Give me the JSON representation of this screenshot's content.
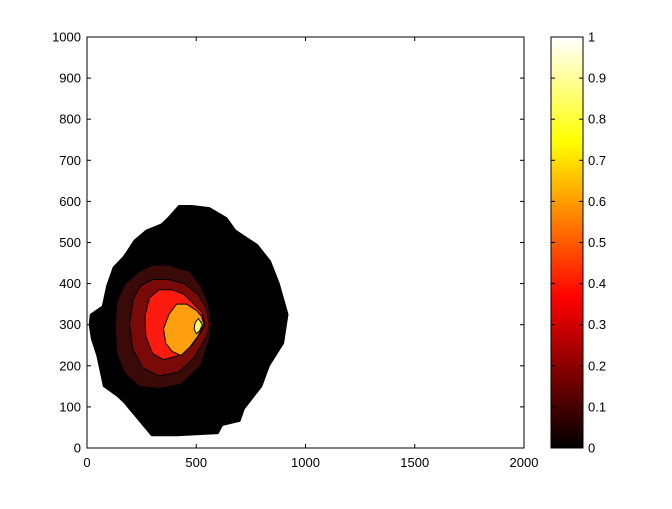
{
  "chart_data": {
    "type": "contour",
    "title": "",
    "xlabel": "",
    "ylabel": "",
    "xlim": [
      0,
      2000
    ],
    "ylim": [
      0,
      1000
    ],
    "x_ticks": [
      0,
      500,
      1000,
      1500,
      2000
    ],
    "y_ticks": [
      0,
      100,
      200,
      300,
      400,
      500,
      600,
      700,
      800,
      900,
      1000
    ],
    "colormap": "hot",
    "colorbar": {
      "range": [
        0,
        1
      ],
      "ticks": [
        0,
        0.1,
        0.2,
        0.3,
        0.4,
        0.5,
        0.6,
        0.7,
        0.8,
        0.9,
        1
      ],
      "tick_labels": [
        "0",
        "0.1",
        "0.2",
        "0.3",
        "0.4",
        "0.5",
        "0.6",
        "0.7",
        "0.8",
        "0.9",
        "1"
      ]
    },
    "grid": false,
    "levels": [
      {
        "value": 0.0,
        "color": "#000000",
        "polygon": [
          [
            480,
            590
          ],
          [
            420,
            590
          ],
          [
            370,
            560
          ],
          [
            340,
            545
          ],
          [
            270,
            530
          ],
          [
            215,
            505
          ],
          [
            185,
            480
          ],
          [
            165,
            465
          ],
          [
            120,
            440
          ],
          [
            90,
            395
          ],
          [
            70,
            345
          ],
          [
            15,
            325
          ],
          [
            10,
            300
          ],
          [
            20,
            265
          ],
          [
            45,
            225
          ],
          [
            75,
            150
          ],
          [
            140,
            125
          ],
          [
            170,
            110
          ],
          [
            295,
            30
          ],
          [
            410,
            30
          ],
          [
            600,
            35
          ],
          [
            620,
            55
          ],
          [
            700,
            65
          ],
          [
            720,
            95
          ],
          [
            800,
            150
          ],
          [
            835,
            200
          ],
          [
            900,
            255
          ],
          [
            920,
            325
          ],
          [
            880,
            400
          ],
          [
            840,
            455
          ],
          [
            780,
            495
          ],
          [
            680,
            530
          ],
          [
            640,
            560
          ],
          [
            560,
            585
          ]
        ]
      },
      {
        "value": 0.1,
        "color": "#3a0a08",
        "polygon": [
          [
            370,
            445
          ],
          [
            300,
            445
          ],
          [
            240,
            430
          ],
          [
            175,
            400
          ],
          [
            135,
            355
          ],
          [
            130,
            300
          ],
          [
            135,
            230
          ],
          [
            175,
            180
          ],
          [
            240,
            150
          ],
          [
            330,
            145
          ],
          [
            430,
            155
          ],
          [
            520,
            200
          ],
          [
            560,
            265
          ],
          [
            570,
            300
          ],
          [
            555,
            350
          ],
          [
            520,
            395
          ],
          [
            470,
            430
          ]
        ]
      },
      {
        "value": 0.2,
        "color": "#7a0a08",
        "polygon": [
          [
            370,
            410
          ],
          [
            300,
            410
          ],
          [
            245,
            395
          ],
          [
            210,
            360
          ],
          [
            195,
            300
          ],
          [
            210,
            240
          ],
          [
            255,
            195
          ],
          [
            330,
            175
          ],
          [
            420,
            185
          ],
          [
            490,
            220
          ],
          [
            545,
            270
          ],
          [
            560,
            300
          ],
          [
            545,
            340
          ],
          [
            505,
            375
          ],
          [
            445,
            400
          ]
        ]
      },
      {
        "value": 0.3,
        "color": "#ff1a10",
        "polygon": [
          [
            390,
            385
          ],
          [
            330,
            385
          ],
          [
            285,
            365
          ],
          [
            265,
            320
          ],
          [
            270,
            270
          ],
          [
            300,
            230
          ],
          [
            350,
            215
          ],
          [
            420,
            225
          ],
          [
            480,
            250
          ],
          [
            525,
            285
          ],
          [
            540,
            300
          ],
          [
            525,
            330
          ],
          [
            480,
            355
          ],
          [
            440,
            375
          ]
        ]
      },
      {
        "value": 0.5,
        "color": "#ff9f0d",
        "polygon": [
          [
            455,
            350
          ],
          [
            410,
            350
          ],
          [
            375,
            325
          ],
          [
            350,
            290
          ],
          [
            360,
            255
          ],
          [
            390,
            235
          ],
          [
            430,
            225
          ],
          [
            470,
            245
          ],
          [
            505,
            270
          ],
          [
            535,
            300
          ],
          [
            525,
            320
          ],
          [
            500,
            335
          ]
        ]
      },
      {
        "value": 0.8,
        "color": "#ffff6a",
        "polygon": [
          [
            510,
            315
          ],
          [
            495,
            305
          ],
          [
            490,
            290
          ],
          [
            500,
            278
          ],
          [
            515,
            285
          ],
          [
            528,
            300
          ]
        ]
      }
    ]
  }
}
